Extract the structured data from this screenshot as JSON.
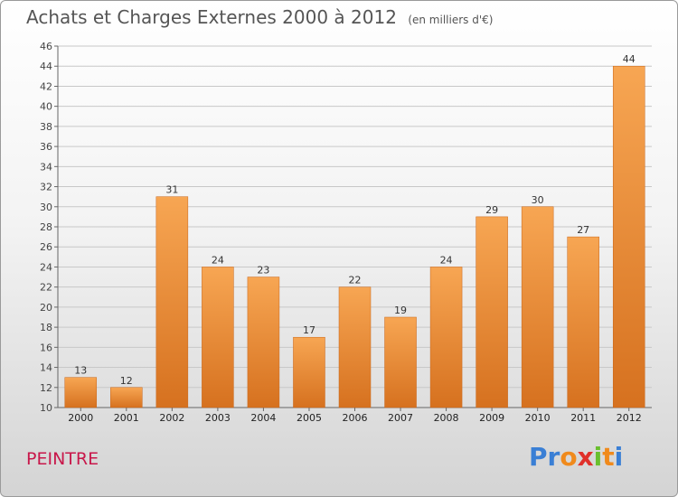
{
  "header": {
    "title": "Achats et Charges Externes 2000 à 2012",
    "unit": "(en milliers d'€)"
  },
  "footer": {
    "city": "PEINTRE",
    "brand_letters": [
      "P",
      "r",
      "o",
      "x",
      "i",
      "t",
      "i"
    ],
    "brand_colors": [
      "#3a7fd5",
      "#3a7fd5",
      "#f08a1c",
      "#e0302a",
      "#6abf2e",
      "#f08a1c",
      "#3a7fd5"
    ]
  },
  "colors": {
    "bar_top": "#f7a653",
    "bar_bottom": "#d6711f",
    "grid": "#c8c8c8",
    "axis": "#666666"
  },
  "chart_data": {
    "type": "bar",
    "title": "Achats et Charges Externes 2000 à 2012",
    "subtitle": "(en milliers d'€)",
    "categories": [
      "2000",
      "2001",
      "2002",
      "2003",
      "2004",
      "2005",
      "2006",
      "2007",
      "2008",
      "2009",
      "2010",
      "2011",
      "2012"
    ],
    "values": [
      13,
      12,
      31,
      24,
      23,
      17,
      22,
      19,
      24,
      29,
      30,
      27,
      44
    ],
    "ylim": [
      10,
      46
    ],
    "yticks": [
      10,
      12,
      14,
      16,
      18,
      20,
      22,
      24,
      26,
      28,
      30,
      32,
      34,
      36,
      38,
      40,
      42,
      44,
      46
    ],
    "grid": true
  }
}
